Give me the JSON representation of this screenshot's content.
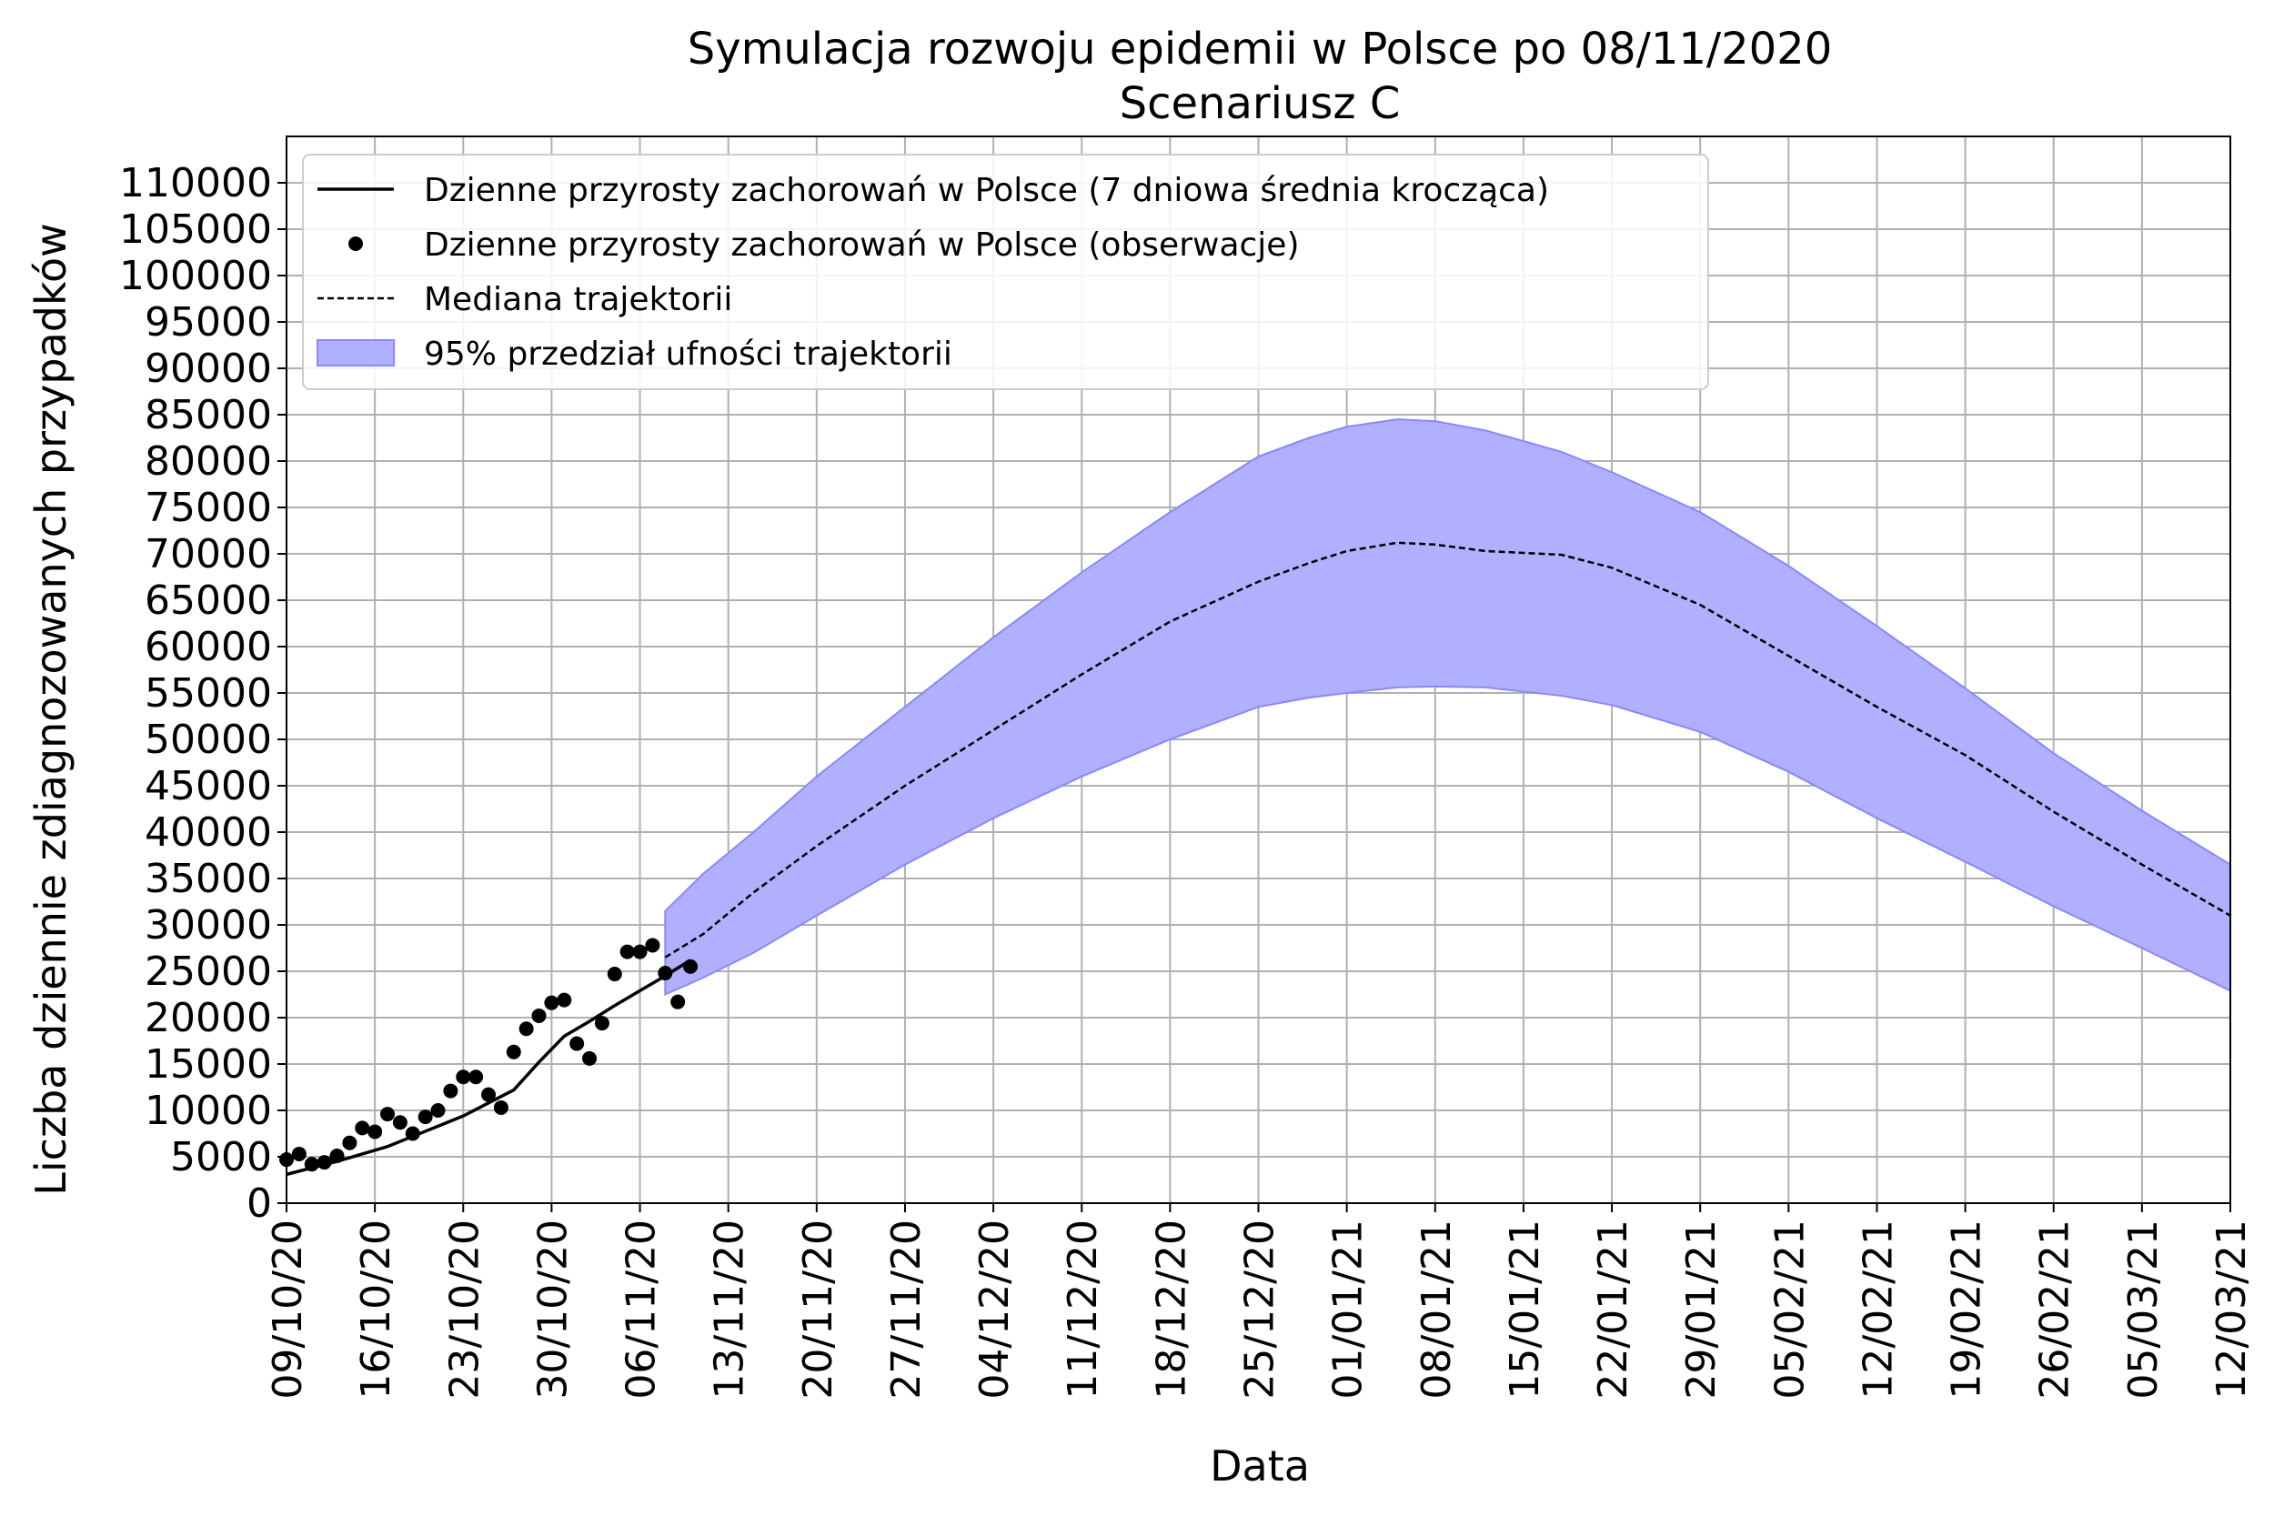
{
  "chart_data": {
    "type": "line",
    "title": "Symulacja rozwoju epidemii w Polsce po 08/11/2020",
    "subtitle": "Scenariusz C",
    "xlabel": "Data",
    "ylabel": "Liczba dziennie zdiagnozowanych przypadków",
    "ylim": [
      0,
      115000
    ],
    "grid": true,
    "legend_position": "top-left",
    "y_ticks": [
      0,
      5000,
      10000,
      15000,
      20000,
      25000,
      30000,
      35000,
      40000,
      45000,
      50000,
      55000,
      60000,
      65000,
      70000,
      75000,
      80000,
      85000,
      90000,
      95000,
      100000,
      105000,
      110000
    ],
    "x_ticks": [
      "09/10/20",
      "16/10/20",
      "23/10/20",
      "30/10/20",
      "06/11/20",
      "13/11/20",
      "20/11/20",
      "27/11/20",
      "04/12/20",
      "11/12/20",
      "18/12/20",
      "25/12/20",
      "01/01/21",
      "08/01/21",
      "15/01/21",
      "22/01/21",
      "29/01/21",
      "05/02/21",
      "12/02/21",
      "19/02/21",
      "26/02/21",
      "05/03/21",
      "12/03/21"
    ],
    "xlim": [
      "09/10/20",
      "12/03/21"
    ],
    "legend": [
      {
        "label": "Dzienne przyrosty zachorowań w Polsce (7 dniowa średnia krocząca)",
        "kind": "line"
      },
      {
        "label": "Dzienne przyrosty zachorowań w Polsce (obserwacje)",
        "kind": "marker"
      },
      {
        "label": "Mediana trajektorii",
        "kind": "dashed"
      },
      {
        "label": "95% przedział ufności trajektorii",
        "kind": "area"
      }
    ],
    "colors": {
      "band_fill": "#b0b0ff",
      "band_edge": "#8888ff",
      "line": "#000000"
    },
    "series": [
      {
        "name": "Dzienne przyrosty zachorowań w Polsce (7 dniowa średnia krocząca)",
        "kind": "line",
        "x": [
          "09/10/20",
          "11/10/20",
          "13/10/20",
          "15/10/20",
          "17/10/20",
          "19/10/20",
          "21/10/20",
          "23/10/20",
          "25/10/20",
          "27/10/20",
          "29/10/20",
          "31/10/20",
          "02/11/20",
          "04/11/20",
          "06/11/20",
          "08/11/20",
          "10/11/20"
        ],
        "y": [
          3100,
          3800,
          4500,
          5300,
          6100,
          7200,
          8300,
          9400,
          10800,
          12200,
          15200,
          18000,
          19600,
          21300,
          22900,
          24500,
          26200
        ]
      },
      {
        "name": "Dzienne przyrosty zachorowań w Polsce (obserwacje)",
        "kind": "scatter",
        "x": [
          "09/10/20",
          "10/10/20",
          "11/10/20",
          "12/10/20",
          "13/10/20",
          "14/10/20",
          "15/10/20",
          "16/10/20",
          "17/10/20",
          "18/10/20",
          "19/10/20",
          "20/10/20",
          "21/10/20",
          "22/10/20",
          "23/10/20",
          "24/10/20",
          "25/10/20",
          "26/10/20",
          "27/10/20",
          "28/10/20",
          "29/10/20",
          "30/10/20",
          "31/10/20",
          "01/11/20",
          "02/11/20",
          "03/11/20",
          "04/11/20",
          "05/11/20",
          "06/11/20",
          "07/11/20",
          "08/11/20",
          "09/11/20",
          "10/11/20"
        ],
        "y": [
          4700,
          5300,
          4200,
          4400,
          5100,
          6500,
          8100,
          7700,
          9600,
          8700,
          7500,
          9300,
          10000,
          12100,
          13600,
          13600,
          11700,
          10300,
          16300,
          18800,
          20200,
          21600,
          21900,
          17200,
          15600,
          19400,
          24700,
          27100,
          27100,
          27800,
          24800,
          21700,
          25500
        ]
      },
      {
        "name": "Mediana trajektorii",
        "kind": "dashed",
        "x": [
          "08/11/20",
          "11/11/20",
          "15/11/20",
          "20/11/20",
          "27/11/20",
          "04/12/20",
          "11/12/20",
          "18/12/20",
          "25/12/20",
          "29/12/20",
          "01/01/21",
          "05/01/21",
          "08/01/21",
          "12/01/21",
          "18/01/21",
          "22/01/21",
          "29/01/21",
          "05/02/21",
          "12/02/21",
          "19/02/21",
          "26/02/21",
          "05/03/21",
          "12/03/21"
        ],
        "y": [
          26500,
          29000,
          33500,
          38500,
          45000,
          51000,
          57000,
          62700,
          67000,
          69000,
          70300,
          71200,
          71000,
          70300,
          69900,
          68500,
          64500,
          59000,
          53500,
          48300,
          42200,
          36500,
          31000
        ]
      },
      {
        "name": "95% przedział ufności trajektorii",
        "kind": "band",
        "x": [
          "08/11/20",
          "11/11/20",
          "15/11/20",
          "20/11/20",
          "27/11/20",
          "04/12/20",
          "11/12/20",
          "18/12/20",
          "25/12/20",
          "29/12/20",
          "01/01/21",
          "05/01/21",
          "08/01/21",
          "12/01/21",
          "18/01/21",
          "22/01/21",
          "29/01/21",
          "05/02/21",
          "12/02/21",
          "19/02/21",
          "26/02/21",
          "05/03/21",
          "12/03/21"
        ],
        "upper": [
          31500,
          35500,
          40000,
          46000,
          53500,
          61000,
          68000,
          74500,
          80500,
          82500,
          83700,
          84500,
          84300,
          83300,
          81000,
          78800,
          74500,
          68700,
          62200,
          55500,
          48500,
          42300,
          36500
        ],
        "lower": [
          22500,
          24300,
          27000,
          31000,
          36500,
          41500,
          46000,
          50000,
          53500,
          54500,
          55000,
          55600,
          55700,
          55600,
          54700,
          53700,
          50800,
          46500,
          41500,
          36800,
          32000,
          27500,
          22900
        ]
      }
    ]
  }
}
